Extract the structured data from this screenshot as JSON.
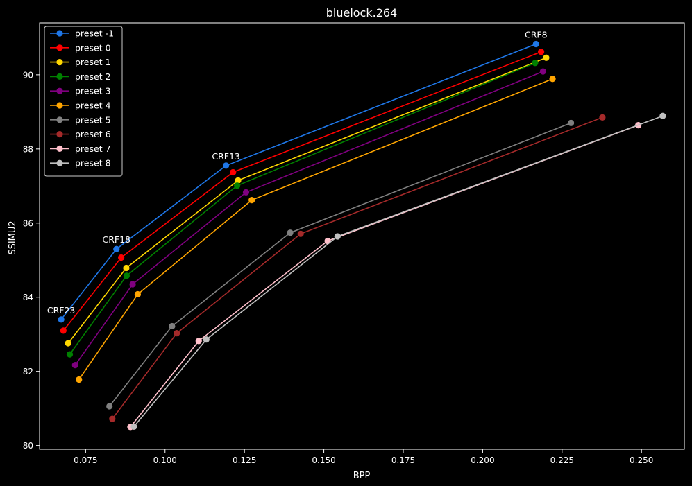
{
  "chart_data": {
    "type": "line",
    "title": "bluelock.264",
    "xlabel": "BPP",
    "ylabel": "SSIMU2",
    "xlim": [
      0.0605,
      0.2635
    ],
    "ylim": [
      79.9,
      91.4
    ],
    "xticks": [
      0.075,
      0.1,
      0.125,
      0.15,
      0.175,
      0.2,
      0.225,
      0.25
    ],
    "xtick_labels": [
      "0.075",
      "0.100",
      "0.125",
      "0.150",
      "0.175",
      "0.200",
      "0.225",
      "0.250"
    ],
    "yticks": [
      80,
      82,
      84,
      86,
      88,
      90
    ],
    "ytick_labels": [
      "80",
      "82",
      "84",
      "86",
      "88",
      "90"
    ],
    "grid": false,
    "legend_position": "upper-left",
    "series": [
      {
        "name": "preset -1",
        "color": "#1f77e8",
        "x": [
          0.0673,
          0.0847,
          0.1192,
          0.2168
        ],
        "y": [
          83.4,
          85.3,
          87.55,
          90.83
        ]
      },
      {
        "name": "preset 0",
        "color": "#ff0000",
        "x": [
          0.068,
          0.0862,
          0.1214,
          0.2184
        ],
        "y": [
          83.1,
          85.07,
          87.37,
          90.62
        ]
      },
      {
        "name": "preset 1",
        "color": "#ffd700",
        "x": [
          0.0695,
          0.0878,
          0.123,
          0.22
        ],
        "y": [
          82.76,
          84.79,
          87.15,
          90.46
        ]
      },
      {
        "name": "preset 2",
        "color": "#008000",
        "x": [
          0.07,
          0.0879,
          0.1227,
          0.2165
        ],
        "y": [
          82.46,
          84.58,
          87.01,
          90.32
        ]
      },
      {
        "name": "preset 3",
        "color": "#800080",
        "x": [
          0.0717,
          0.0898,
          0.1255,
          0.219
        ],
        "y": [
          82.17,
          84.35,
          86.83,
          90.09
        ]
      },
      {
        "name": "preset 4",
        "color": "#ffa500",
        "x": [
          0.0729,
          0.0914,
          0.1273,
          0.222
        ],
        "y": [
          81.78,
          84.08,
          86.62,
          89.89
        ]
      },
      {
        "name": "preset 5",
        "color": "#808080",
        "x": [
          0.0825,
          0.1022,
          0.1394,
          0.2278
        ],
        "y": [
          81.06,
          83.22,
          85.74,
          88.7
        ]
      },
      {
        "name": "preset 6",
        "color": "#a52a2a",
        "x": [
          0.0834,
          0.1037,
          0.1427,
          0.2377
        ],
        "y": [
          80.72,
          83.03,
          85.71,
          88.85
        ]
      },
      {
        "name": "preset 7",
        "color": "#ffc0cb",
        "x": [
          0.0891,
          0.1106,
          0.1512,
          0.249
        ],
        "y": [
          80.5,
          82.82,
          85.52,
          88.64
        ]
      },
      {
        "name": "preset 8",
        "color": "#c0c0c0",
        "x": [
          0.0902,
          0.113,
          0.1543,
          0.2567
        ],
        "y": [
          80.51,
          82.86,
          85.64,
          88.89
        ]
      }
    ],
    "annotations": [
      {
        "text": "CRF23",
        "x": 0.0673,
        "y": 83.4
      },
      {
        "text": "CRF18",
        "x": 0.0847,
        "y": 85.3
      },
      {
        "text": "CRF13",
        "x": 0.1192,
        "y": 87.55
      },
      {
        "text": "CRF8",
        "x": 0.2168,
        "y": 90.83
      }
    ]
  }
}
